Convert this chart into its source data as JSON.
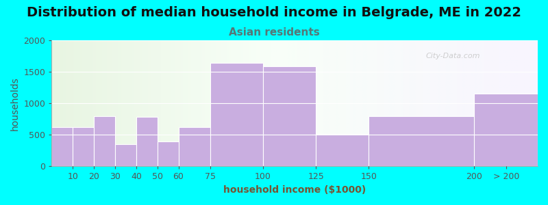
{
  "title": "Distribution of median household income in Belgrade, ME in 2022",
  "subtitle": "Asian residents",
  "xlabel": "household income ($1000)",
  "ylabel": "households",
  "background_color": "#00FFFF",
  "bar_color": "#c9aee0",
  "bar_edgecolor": "#ffffff",
  "categories": [
    "10",
    "20",
    "30",
    "40",
    "50",
    "60",
    "75",
    "100",
    "125",
    "150",
    "200",
    "> 200"
  ],
  "values": [
    625,
    625,
    800,
    350,
    790,
    400,
    625,
    1640,
    1590,
    510,
    795,
    1150
  ],
  "bin_edges": [
    0,
    10,
    20,
    30,
    40,
    50,
    60,
    75,
    100,
    125,
    150,
    200,
    230
  ],
  "tick_positions": [
    10,
    20,
    30,
    40,
    50,
    60,
    75,
    100,
    125,
    150,
    200
  ],
  "last_tick_label": "> 200",
  "ylim": [
    0,
    2000
  ],
  "yticks": [
    0,
    500,
    1000,
    1500,
    2000
  ],
  "title_fontsize": 14,
  "subtitle_fontsize": 11,
  "axis_label_fontsize": 10,
  "tick_fontsize": 9,
  "watermark": "City-Data.com",
  "subtitle_color": "#557777",
  "title_color": "#111111",
  "xlabel_color": "#775533",
  "ylabel_color": "#555555",
  "tick_color": "#555555"
}
